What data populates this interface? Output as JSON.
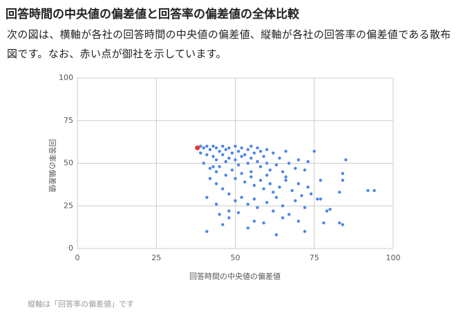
{
  "header": {
    "title": "回答時間の中央値の偏差値と回答率の偏差値の全体比較"
  },
  "paragraph": "次の図は、横軸が各社の回答時間の中央値の偏差値、縦軸が各社の回答率の偏差値である散布図です。なお、赤い点が御社を示しています。",
  "chart_data": {
    "type": "scatter",
    "x_label": "回答時間の中央値の偏差値",
    "y_label": "回答率の偏差値",
    "xlim": [
      0,
      100
    ],
    "ylim": [
      0,
      100
    ],
    "xticks": [
      0,
      25,
      50,
      75,
      100
    ],
    "yticks": [
      0,
      25,
      50,
      75,
      100
    ],
    "grid": true,
    "series": [
      {
        "color": "#4a86e8",
        "x": [
          39,
          40,
          41,
          42,
          43,
          44,
          45,
          46,
          47,
          48,
          49,
          50,
          51,
          52,
          53,
          54,
          55,
          56,
          57,
          58,
          59,
          60,
          62,
          64,
          66,
          39,
          41,
          43,
          44,
          46,
          47,
          48,
          50,
          51,
          52,
          54,
          55,
          57,
          58,
          60,
          61,
          63,
          65,
          67,
          69,
          70,
          72,
          73,
          75,
          85,
          40,
          42,
          44,
          45,
          47,
          49,
          50,
          52,
          53,
          55,
          56,
          58,
          59,
          61,
          62,
          64,
          66,
          68,
          70,
          71,
          73,
          77,
          84,
          84,
          42,
          44,
          46,
          48,
          50,
          52,
          54,
          56,
          57,
          60,
          62,
          63,
          65,
          67,
          69,
          72,
          74,
          76,
          77,
          79,
          80,
          83,
          92,
          94,
          41,
          44,
          45,
          46,
          48,
          51,
          54,
          56,
          59,
          63,
          65,
          70,
          72,
          78,
          83,
          84,
          41,
          48,
          55,
          60,
          66,
          43
        ],
        "values": [
          60,
          59,
          60,
          58,
          60,
          59,
          57,
          60,
          58,
          59,
          56,
          60,
          57,
          59,
          55,
          58,
          60,
          56,
          59,
          57,
          54,
          58,
          56,
          53,
          57,
          56,
          55,
          54,
          52,
          55,
          51,
          53,
          52,
          49,
          54,
          50,
          53,
          51,
          48,
          50,
          46,
          49,
          45,
          50,
          47,
          52,
          46,
          51,
          57,
          52,
          50,
          47,
          45,
          48,
          43,
          46,
          41,
          44,
          39,
          42,
          37,
          40,
          35,
          38,
          33,
          36,
          40,
          34,
          38,
          31,
          36,
          40,
          40,
          44,
          41,
          38,
          35,
          32,
          28,
          30,
          26,
          29,
          24,
          27,
          22,
          30,
          25,
          20,
          28,
          24,
          32,
          29,
          29,
          22,
          23,
          33,
          34,
          34,
          30,
          26,
          20,
          14,
          18,
          21,
          12,
          16,
          15,
          8,
          18,
          16,
          10,
          15,
          15,
          14,
          10,
          22,
          45,
          43,
          42,
          48
        ]
      },
      {
        "color": "#e53935",
        "x": [
          38
        ],
        "values": [
          59
        ]
      }
    ]
  },
  "footnote": "縦軸は「回答率の偏差値」です"
}
